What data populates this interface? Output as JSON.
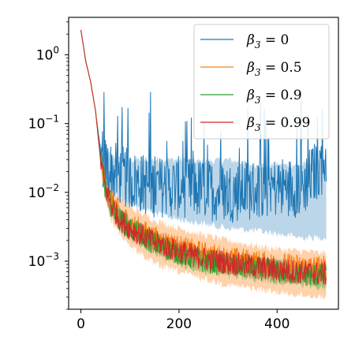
{
  "chart_data": {
    "type": "line",
    "title": "",
    "xlabel": "",
    "ylabel": "",
    "x_range": [
      0,
      500
    ],
    "xlim": [
      -25,
      525
    ],
    "ylim": [
      0.0002,
      3.5
    ],
    "yscale": "log",
    "grid": false,
    "legend_position": "top-right",
    "x_ticks": [
      {
        "value": 0,
        "label": "0"
      },
      {
        "value": 200,
        "label": "200"
      },
      {
        "value": 400,
        "label": "400"
      }
    ],
    "y_ticks": [
      {
        "value": 1,
        "label": "10",
        "exp": "0"
      },
      {
        "value": 0.1,
        "label": "10",
        "exp": "−1"
      },
      {
        "value": 0.01,
        "label": "10",
        "exp": "−2"
      },
      {
        "value": 0.001,
        "label": "10",
        "exp": "−3"
      }
    ],
    "series": [
      {
        "name": "β3 = 0",
        "legend_prefix": "β",
        "legend_sub": "3",
        "legend_suffix": " = 0",
        "color": "#1f77b4",
        "x": [
          0,
          10,
          20,
          30,
          40,
          50,
          60,
          80,
          100,
          150,
          200,
          250,
          300,
          350,
          400,
          450,
          500
        ],
        "y": [
          2.3,
          0.8,
          0.4,
          0.15,
          0.04,
          0.025,
          0.02,
          0.018,
          0.015,
          0.012,
          0.012,
          0.011,
          0.01,
          0.011,
          0.012,
          0.012,
          0.03
        ],
        "band_low": [
          2.3,
          0.8,
          0.4,
          0.15,
          0.03,
          0.015,
          0.01,
          0.008,
          0.007,
          0.005,
          0.004,
          0.0035,
          0.003,
          0.0028,
          0.0025,
          0.0022,
          0.0022
        ],
        "band_high": [
          2.3,
          0.8,
          0.4,
          0.15,
          0.05,
          0.04,
          0.035,
          0.03,
          0.03,
          0.03,
          0.03,
          0.028,
          0.03,
          0.025,
          0.025,
          0.025,
          0.03
        ]
      },
      {
        "name": "β3 = 0.5",
        "legend_prefix": "β",
        "legend_sub": "3",
        "legend_suffix": " = 0.5",
        "color": "#ff7f0e",
        "x": [
          0,
          10,
          20,
          30,
          40,
          50,
          60,
          80,
          100,
          150,
          200,
          250,
          300,
          350,
          400,
          450,
          500
        ],
        "y": [
          2.3,
          0.8,
          0.4,
          0.15,
          0.03,
          0.012,
          0.008,
          0.005,
          0.0035,
          0.0022,
          0.0016,
          0.0013,
          0.0011,
          0.001,
          0.0009,
          0.00085,
          0.0008
        ],
        "band_low": [
          2.3,
          0.8,
          0.4,
          0.15,
          0.025,
          0.008,
          0.004,
          0.0025,
          0.0017,
          0.0009,
          0.0007,
          0.00055,
          0.00045,
          0.0004,
          0.00035,
          0.00032,
          0.0003
        ],
        "band_high": [
          2.3,
          0.8,
          0.4,
          0.15,
          0.035,
          0.016,
          0.011,
          0.008,
          0.006,
          0.004,
          0.003,
          0.0024,
          0.002,
          0.0017,
          0.0015,
          0.0014,
          0.0013
        ]
      },
      {
        "name": "β3 = 0.9",
        "legend_prefix": "β",
        "legend_sub": "3",
        "legend_suffix": " = 0.9",
        "color": "#2ca02c",
        "x": [
          0,
          10,
          20,
          30,
          40,
          50,
          60,
          80,
          100,
          150,
          200,
          250,
          300,
          350,
          400,
          450,
          500
        ],
        "y": [
          2.3,
          0.8,
          0.4,
          0.15,
          0.03,
          0.011,
          0.007,
          0.004,
          0.003,
          0.0018,
          0.0013,
          0.001,
          0.0009,
          0.0008,
          0.0007,
          0.00065,
          0.0006
        ],
        "band_low": [
          2.3,
          0.8,
          0.4,
          0.15,
          0.025,
          0.008,
          0.005,
          0.003,
          0.0022,
          0.0013,
          0.0009,
          0.0007,
          0.0006,
          0.00055,
          0.0005,
          0.00045,
          0.0004
        ],
        "band_high": [
          2.3,
          0.8,
          0.4,
          0.15,
          0.035,
          0.014,
          0.009,
          0.0055,
          0.004,
          0.0025,
          0.0018,
          0.0014,
          0.0012,
          0.0011,
          0.001,
          0.0009,
          0.0009
        ]
      },
      {
        "name": "β3 = 0.99",
        "legend_prefix": "β",
        "legend_sub": "3",
        "legend_suffix": " = 0.99",
        "color": "#d62728",
        "x": [
          0,
          10,
          20,
          30,
          40,
          50,
          60,
          80,
          100,
          150,
          200,
          250,
          300,
          350,
          400,
          450,
          500
        ],
        "y": [
          2.3,
          0.8,
          0.4,
          0.15,
          0.03,
          0.012,
          0.007,
          0.004,
          0.003,
          0.0019,
          0.0014,
          0.0011,
          0.00095,
          0.00085,
          0.00075,
          0.0007,
          0.00065
        ],
        "band_low": [
          2.3,
          0.8,
          0.4,
          0.15,
          0.025,
          0.009,
          0.005,
          0.003,
          0.0022,
          0.0014,
          0.001,
          0.0008,
          0.0007,
          0.00062,
          0.00055,
          0.0005,
          0.00048
        ],
        "band_high": [
          2.3,
          0.8,
          0.4,
          0.15,
          0.035,
          0.015,
          0.009,
          0.0055,
          0.004,
          0.0026,
          0.0019,
          0.0015,
          0.0013,
          0.0011,
          0.001,
          0.00095,
          0.0009
        ]
      }
    ]
  }
}
